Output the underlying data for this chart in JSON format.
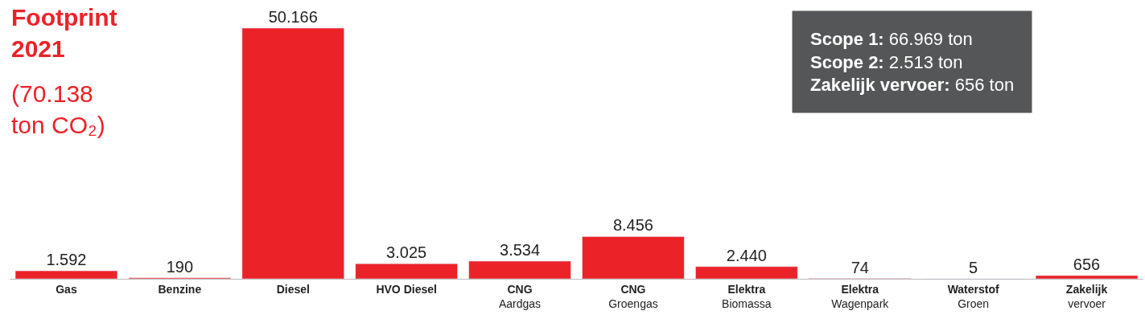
{
  "chart_data": {
    "type": "bar",
    "title": "Footprint\n2021",
    "subtitle": "(70.138\nton CO₂)",
    "categories": [
      "Gas",
      "Benzine",
      "Diesel",
      "HVO Diesel",
      "CNG\nAardgas",
      "CNG\nGroengas",
      "Elektra\nBiomassa",
      "Elektra\nWagenpark",
      "Waterstof\nGroen",
      "Zakelijk\nvervoer"
    ],
    "values": [
      1592,
      190,
      50166,
      3025,
      3534,
      8456,
      2440,
      74,
      5,
      656
    ],
    "value_labels": [
      "1.592",
      "190",
      "50.166",
      "3.025",
      "3.534",
      "8.456",
      "2.440",
      "74",
      "5",
      "656"
    ],
    "color": "#ec2229",
    "annotations": [
      "Scope 1: 66.969 ton",
      "Scope 2: 2.513 ton",
      "Zakelijk vervoer: 656 ton"
    ]
  }
}
